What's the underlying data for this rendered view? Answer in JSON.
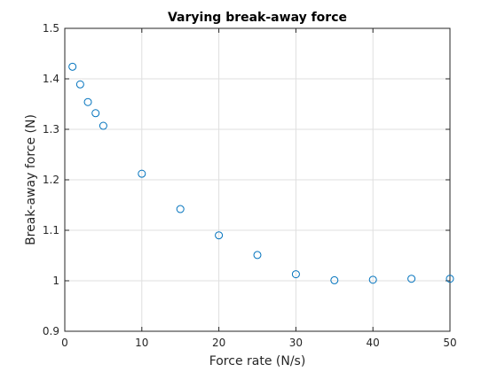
{
  "chart_data": {
    "type": "scatter",
    "title": "Varying break-away force",
    "xlabel": "Force rate (N/s)",
    "ylabel": "Break-away force (N)",
    "xlim": [
      0,
      50
    ],
    "ylim": [
      0.9,
      1.5
    ],
    "xticks": [
      0,
      10,
      20,
      30,
      40,
      50
    ],
    "yticks": [
      0.9,
      1,
      1.1,
      1.2,
      1.3,
      1.4,
      1.5
    ],
    "xtick_labels": [
      "0",
      "10",
      "20",
      "30",
      "40",
      "50"
    ],
    "ytick_labels": [
      "0.9",
      "1",
      "1.1",
      "1.2",
      "1.3",
      "1.4",
      "1.5"
    ],
    "grid": true,
    "marker": "open-circle",
    "marker_color": "#0072BD",
    "series": [
      {
        "x": [
          1,
          2,
          3,
          4,
          5,
          10,
          15,
          20,
          25,
          30,
          35,
          40,
          45,
          50
        ],
        "y": [
          1.424,
          1.389,
          1.354,
          1.332,
          1.307,
          1.212,
          1.142,
          1.09,
          1.051,
          1.013,
          1.001,
          1.002,
          1.004,
          1.004
        ]
      }
    ]
  }
}
